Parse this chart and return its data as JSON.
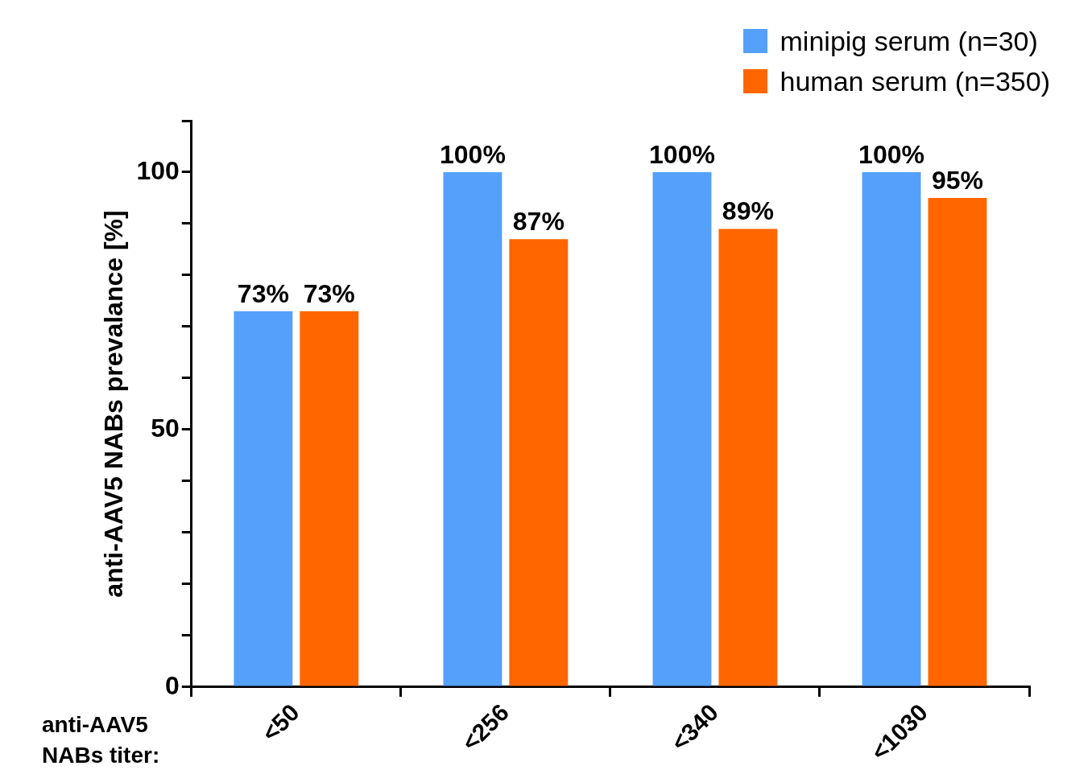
{
  "chart_data": {
    "type": "bar",
    "xlabel": "anti-AAV5\nNABs titer:",
    "ylabel": "anti-AAV5 NABs prevalance [%]",
    "categories": [
      "<50",
      "<256",
      "<340",
      "<1030"
    ],
    "series": [
      {
        "name": "minipig serum (n=30)",
        "color": "#55a0fb",
        "values": [
          73,
          100,
          100,
          100
        ],
        "value_labels": [
          "73%",
          "100%",
          "100%",
          "100%"
        ]
      },
      {
        "name": "human serum (n=350)",
        "color": "#ff6600",
        "values": [
          73,
          87,
          89,
          95
        ],
        "value_labels": [
          "73%",
          "87%",
          "89%",
          "95%"
        ]
      }
    ],
    "ylim": [
      0,
      110
    ],
    "yticks": [
      0,
      {
        "value": 10,
        "label": null
      },
      {
        "value": 20,
        "label": null
      },
      {
        "value": 30,
        "label": null
      },
      {
        "value": 40,
        "label": null
      },
      50,
      {
        "value": 60,
        "label": null
      },
      {
        "value": 70,
        "label": null
      },
      {
        "value": 80,
        "label": null
      },
      {
        "value": 90,
        "label": null
      },
      100,
      {
        "value": 110,
        "label": null
      }
    ],
    "grid": false,
    "legend": "top right"
  }
}
